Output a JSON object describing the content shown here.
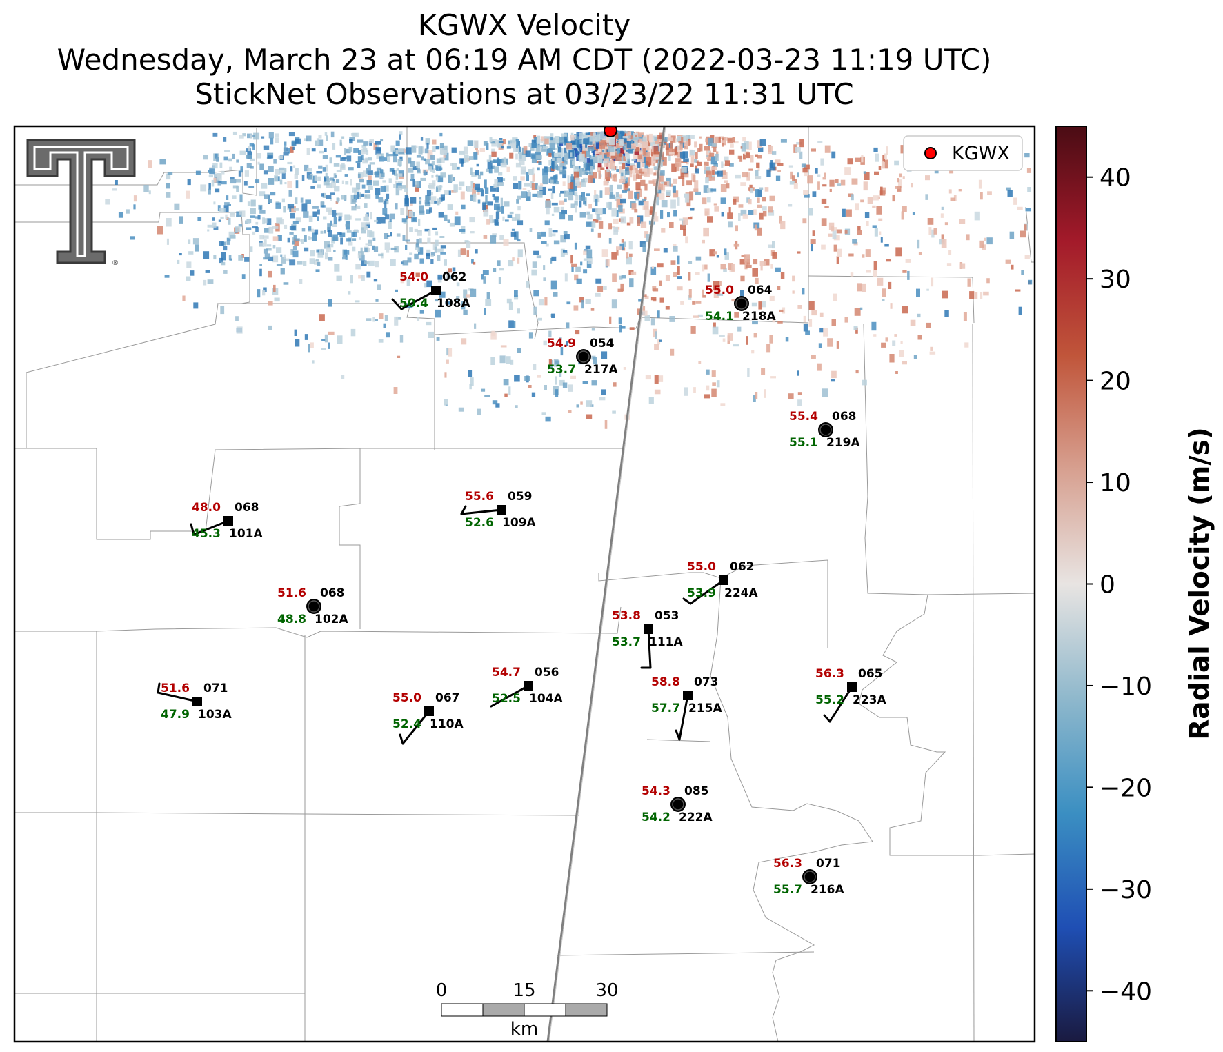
{
  "titles": {
    "line1": "KGWX Velocity",
    "line2": "Wednesday, March 23 at 06:19 AM CDT (2022-03-23 11:19 UTC)",
    "line3": "StickNet Observations at 03/23/22 11:31 UTC"
  },
  "legend": {
    "label": "KGWX",
    "marker_color": "#ff0000"
  },
  "colorbar": {
    "label": "Radial Velocity (m/s)",
    "range": [
      -45,
      45
    ],
    "ticks": [
      "40",
      "30",
      "20",
      "10",
      "0",
      "−10",
      "−20",
      "−30",
      "−40"
    ],
    "colors": [
      "#1a1a40",
      "#1f4fb4",
      "#3b8fc2",
      "#8fb8cc",
      "#e8e4e2",
      "#d7a090",
      "#c0553a",
      "#a31a2a",
      "#4a0c14"
    ]
  },
  "scalebar": {
    "unit": "km",
    "ticks": [
      "0",
      "15",
      "30"
    ]
  },
  "radar": {
    "name": "KGWX",
    "positive_color": "#d9826a",
    "negative_color": "#4a8ec0"
  },
  "stations": [
    {
      "id": "108A",
      "temp": "54.0",
      "dew": "50.4",
      "pressure": "062",
      "type": "barb"
    },
    {
      "id": "218A",
      "temp": "55.0",
      "dew": "54.1",
      "pressure": "064",
      "type": "calm"
    },
    {
      "id": "217A",
      "temp": "54.9",
      "dew": "53.7",
      "pressure": "054",
      "type": "calm"
    },
    {
      "id": "219A",
      "temp": "55.4",
      "dew": "55.1",
      "pressure": "068",
      "type": "calm"
    },
    {
      "id": "101A",
      "temp": "48.0",
      "dew": "45.3",
      "pressure": "068",
      "type": "barb"
    },
    {
      "id": "109A",
      "temp": "55.6",
      "dew": "52.6",
      "pressure": "059",
      "type": "barb"
    },
    {
      "id": "224A",
      "temp": "55.0",
      "dew": "53.9",
      "pressure": "062",
      "type": "barb"
    },
    {
      "id": "102A",
      "temp": "51.6",
      "dew": "48.8",
      "pressure": "068",
      "type": "calm"
    },
    {
      "id": "111A",
      "temp": "53.8",
      "dew": "53.7",
      "pressure": "053",
      "type": "barb"
    },
    {
      "id": "103A",
      "temp": "51.6",
      "dew": "47.9",
      "pressure": "071",
      "type": "barb"
    },
    {
      "id": "104A",
      "temp": "54.7",
      "dew": "52.5",
      "pressure": "056",
      "type": "barb"
    },
    {
      "id": "110A",
      "temp": "55.0",
      "dew": "52.4",
      "pressure": "067",
      "type": "barb"
    },
    {
      "id": "215A",
      "temp": "58.8",
      "dew": "57.7",
      "pressure": "073",
      "type": "barb"
    },
    {
      "id": "223A",
      "temp": "56.3",
      "dew": "55.2",
      "pressure": "065",
      "type": "barb"
    },
    {
      "id": "222A",
      "temp": "54.3",
      "dew": "54.2",
      "pressure": "085",
      "type": "calm"
    },
    {
      "id": "216A",
      "temp": "56.3",
      "dew": "55.7",
      "pressure": "071",
      "type": "calm"
    }
  ]
}
